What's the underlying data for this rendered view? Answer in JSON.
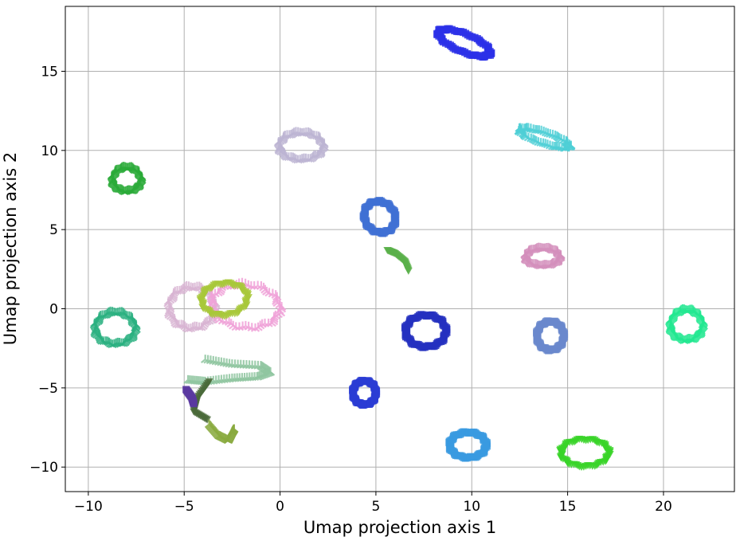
{
  "chart_data": {
    "type": "scatter",
    "title": "",
    "xlabel": "Umap projection axis 1",
    "ylabel": "Umap projection axis 2",
    "xlim": [
      -11.2,
      23.7
    ],
    "ylim": [
      -11.55,
      19.1
    ],
    "xticks": [
      -10,
      -5,
      0,
      5,
      10,
      15,
      20
    ],
    "yticks": [
      -10,
      -5,
      0,
      5,
      10,
      15
    ],
    "xtick_labels": [
      "−10",
      "−5",
      "0",
      "5",
      "10",
      "15",
      "20"
    ],
    "ytick_labels": [
      "−10",
      "−5",
      "0",
      "5",
      "10",
      "15"
    ],
    "grid": true,
    "legend": "none",
    "rings": [
      {
        "cx": 9.6,
        "cy": 16.8,
        "rx": 1.5,
        "ry": 0.55,
        "rot": -28,
        "color": "#2b30e8",
        "marker": "square"
      },
      {
        "cx": 13.8,
        "cy": 10.8,
        "rx": 1.4,
        "ry": 0.35,
        "rot": -22,
        "color": "#4fcfd6",
        "marker": "tri"
      },
      {
        "cx": 1.1,
        "cy": 10.3,
        "rx": 1.15,
        "ry": 0.85,
        "rot": 0,
        "color": "#bcb4d2",
        "marker": "tri"
      },
      {
        "cx": -8.0,
        "cy": 8.2,
        "rx": 0.75,
        "ry": 0.75,
        "rot": 0,
        "color": "#2aaa38",
        "marker": "tri"
      },
      {
        "cx": 5.2,
        "cy": 5.8,
        "rx": 0.8,
        "ry": 1.0,
        "rot": 15,
        "color": "#3f70d4",
        "marker": "square"
      },
      {
        "cx": 13.7,
        "cy": 3.3,
        "rx": 0.9,
        "ry": 0.55,
        "rot": 0,
        "color": "#d48fbc",
        "marker": "tri"
      },
      {
        "cx": -4.6,
        "cy": 0.1,
        "rx": 1.2,
        "ry": 1.3,
        "rot": 0,
        "color": "#d8b4d2",
        "marker": "tri"
      },
      {
        "cx": -1.8,
        "cy": 0.2,
        "rx": 1.8,
        "ry": 1.35,
        "rot": -10,
        "color": "#f0a2d8",
        "marker": "tri"
      },
      {
        "cx": -2.9,
        "cy": 0.6,
        "rx": 1.2,
        "ry": 1.0,
        "rot": 10,
        "color": "#a8c83a",
        "marker": "tri_down"
      },
      {
        "cx": -8.6,
        "cy": -1.2,
        "rx": 1.05,
        "ry": 1.0,
        "rot": 0,
        "color": "#2ab080",
        "marker": "tri"
      },
      {
        "cx": 7.6,
        "cy": -1.4,
        "rx": 1.05,
        "ry": 1.0,
        "rot": 0,
        "color": "#2430c0",
        "marker": "square"
      },
      {
        "cx": 14.1,
        "cy": -1.7,
        "rx": 0.7,
        "ry": 0.9,
        "rot": 0,
        "color": "#6a88cc",
        "marker": "square"
      },
      {
        "cx": 21.2,
        "cy": -1.0,
        "rx": 0.85,
        "ry": 0.95,
        "rot": 0,
        "color": "#22e890",
        "marker": "tri"
      },
      {
        "cx": 4.4,
        "cy": -5.3,
        "rx": 0.6,
        "ry": 0.75,
        "rot": 0,
        "color": "#2a3cd4",
        "marker": "square"
      },
      {
        "cx": 9.8,
        "cy": -8.6,
        "rx": 0.95,
        "ry": 0.8,
        "rot": 0,
        "color": "#3a9ae0",
        "marker": "square"
      },
      {
        "cx": 15.9,
        "cy": -9.1,
        "rx": 1.25,
        "ry": 0.85,
        "rot": 0,
        "color": "#38d428",
        "marker": "tri_down"
      }
    ],
    "paths": [
      {
        "color": "#5ab04a",
        "marker": "tri_down",
        "points": [
          [
            5.6,
            3.7
          ],
          [
            6.0,
            3.5
          ],
          [
            6.5,
            3.0
          ],
          [
            6.7,
            2.4
          ]
        ]
      },
      {
        "color": "#8fc6a0",
        "marker": "tri",
        "points": [
          [
            -3.9,
            -3.2
          ],
          [
            -2.5,
            -3.5
          ],
          [
            -1.0,
            -3.6
          ],
          [
            -0.5,
            -4.0
          ],
          [
            -1.2,
            -4.3
          ],
          [
            -2.5,
            -4.4
          ],
          [
            -3.9,
            -4.6
          ],
          [
            -4.8,
            -4.5
          ]
        ]
      },
      {
        "color": "#4a6a3a",
        "marker": "tri_down",
        "points": [
          [
            -3.7,
            -4.6
          ],
          [
            -4.3,
            -5.6
          ],
          [
            -4.5,
            -6.5
          ],
          [
            -3.8,
            -7.0
          ]
        ]
      },
      {
        "color": "#8aaa40",
        "marker": "tri",
        "points": [
          [
            -3.7,
            -7.3
          ],
          [
            -3.2,
            -8.0
          ],
          [
            -2.7,
            -8.3
          ],
          [
            -2.5,
            -7.8
          ],
          [
            -2.4,
            -7.6
          ]
        ]
      },
      {
        "color": "#5a3aa0",
        "marker": "square",
        "points": [
          [
            -4.9,
            -5.1
          ],
          [
            -4.6,
            -5.6
          ],
          [
            -4.5,
            -6.0
          ]
        ]
      }
    ]
  }
}
